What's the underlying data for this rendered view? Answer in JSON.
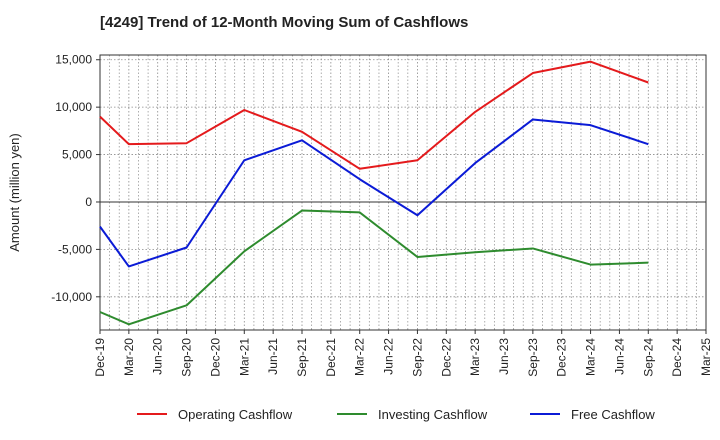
{
  "chart_data": {
    "type": "line",
    "title": "[4249]  Trend of 12-Month Moving Sum of Cashflows",
    "xlabel": "",
    "ylabel": "Amount (million yen)",
    "ylim": [
      -13500,
      15500
    ],
    "yticks": [
      15000,
      10000,
      5000,
      0,
      -5000,
      -10000
    ],
    "ytick_labels": [
      "15,000",
      "10,000",
      "5,000",
      "0",
      "-5,000",
      "-10,000"
    ],
    "x": [
      "Dec-19",
      "Mar-20",
      "Jun-20",
      "Sep-20",
      "Dec-20",
      "Mar-21",
      "Jun-21",
      "Sep-21",
      "Dec-21",
      "Mar-22",
      "Jun-22",
      "Sep-22",
      "Dec-22",
      "Mar-23",
      "Jun-23",
      "Sep-23",
      "Dec-23",
      "Mar-24",
      "Jun-24",
      "Sep-24",
      "Dec-24",
      "Mar-25"
    ],
    "grid": true,
    "legend_position": "bottom",
    "series": [
      {
        "name": "Operating Cashflow",
        "color": "#e41a1c",
        "points": [
          [
            "Dec-19",
            9000
          ],
          [
            "Mar-20",
            6100
          ],
          [
            "Sep-20",
            6200
          ],
          [
            "Mar-21",
            9700
          ],
          [
            "Sep-21",
            7400
          ],
          [
            "Mar-22",
            3500
          ],
          [
            "Sep-22",
            4400
          ],
          [
            "Mar-23",
            9500
          ],
          [
            "Sep-23",
            13600
          ],
          [
            "Mar-24",
            14800
          ],
          [
            "Sep-24",
            12600
          ]
        ]
      },
      {
        "name": "Investing Cashflow",
        "color": "#2e8b2e",
        "points": [
          [
            "Dec-19",
            -11600
          ],
          [
            "Mar-20",
            -12900
          ],
          [
            "Sep-20",
            -10900
          ],
          [
            "Mar-21",
            -5200
          ],
          [
            "Sep-21",
            -900
          ],
          [
            "Mar-22",
            -1100
          ],
          [
            "Sep-22",
            -5800
          ],
          [
            "Mar-23",
            -5300
          ],
          [
            "Sep-23",
            -4900
          ],
          [
            "Mar-24",
            -6600
          ],
          [
            "Sep-24",
            -6400
          ]
        ]
      },
      {
        "name": "Free Cashflow",
        "color": "#0b1bd6",
        "points": [
          [
            "Dec-19",
            -2600
          ],
          [
            "Mar-20",
            -6800
          ],
          [
            "Sep-20",
            -4800
          ],
          [
            "Mar-21",
            4400
          ],
          [
            "Sep-21",
            6500
          ],
          [
            "Mar-22",
            2400
          ],
          [
            "Sep-22",
            -1400
          ],
          [
            "Mar-23",
            4100
          ],
          [
            "Sep-23",
            8700
          ],
          [
            "Mar-24",
            8100
          ],
          [
            "Sep-24",
            6100
          ]
        ]
      }
    ]
  }
}
